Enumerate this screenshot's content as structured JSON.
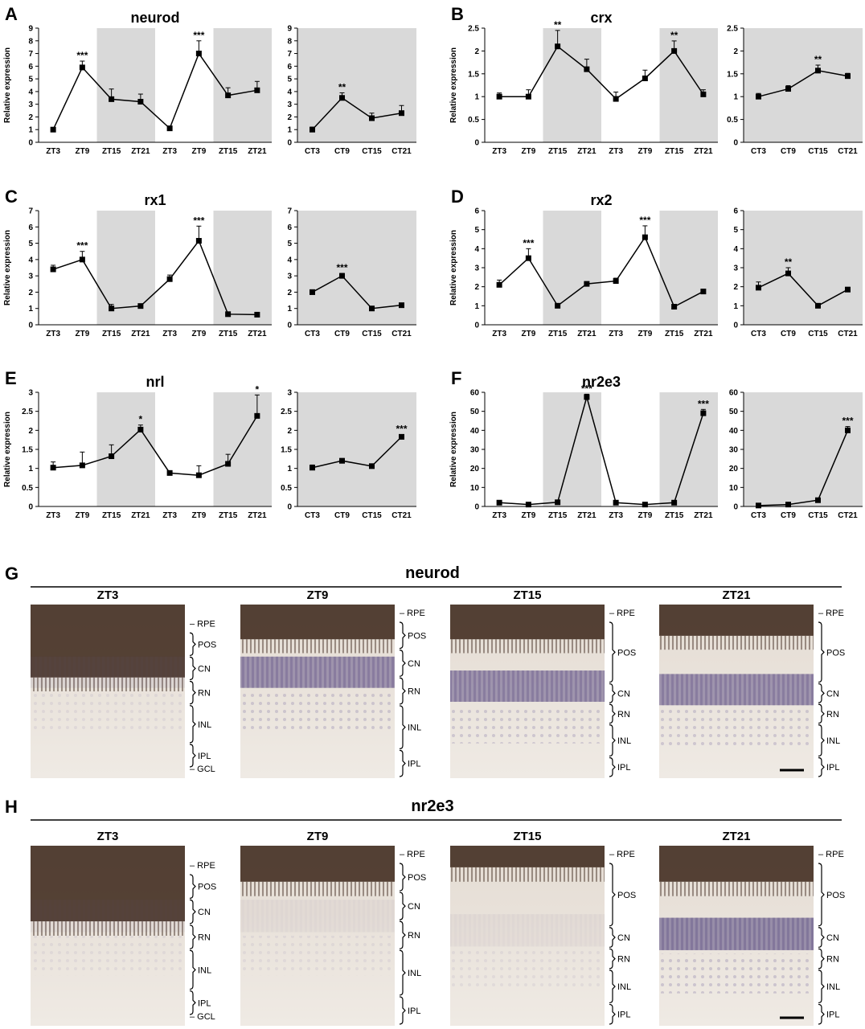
{
  "panels": [
    {
      "letter": "A",
      "title": "neurod",
      "ylabel": "Relative expression",
      "ymax": 9,
      "ystep": 1,
      "decimals": 0,
      "lx": [
        "ZT3",
        "ZT9",
        "ZT15",
        "ZT21",
        "ZT3",
        "ZT9",
        "ZT15",
        "ZT21"
      ],
      "lv": [
        1.0,
        5.9,
        3.4,
        3.2,
        1.1,
        7.0,
        3.7,
        4.1
      ],
      "le": [
        0.1,
        0.5,
        0.8,
        0.6,
        0.1,
        1.0,
        0.6,
        0.7
      ],
      "ls": [
        "",
        "***",
        "",
        "",
        "",
        "***",
        "",
        ""
      ],
      "rx": [
        "CT3",
        "CT9",
        "CT15",
        "CT21"
      ],
      "rv": [
        1.0,
        3.5,
        1.9,
        2.3
      ],
      "re": [
        0.2,
        0.4,
        0.4,
        0.6
      ],
      "rs": [
        "",
        "**",
        "",
        ""
      ]
    },
    {
      "letter": "B",
      "title": "crx",
      "ylabel": "Relative expression",
      "ymax": 2.5,
      "ystep": 0.5,
      "decimals": 1,
      "lx": [
        "ZT3",
        "ZT9",
        "ZT15",
        "ZT21",
        "ZT3",
        "ZT9",
        "ZT15",
        "ZT21"
      ],
      "lv": [
        1.0,
        1.0,
        2.1,
        1.6,
        0.95,
        1.4,
        2.0,
        1.05
      ],
      "le": [
        0.08,
        0.15,
        0.35,
        0.22,
        0.15,
        0.18,
        0.22,
        0.1
      ],
      "ls": [
        "",
        "",
        "**",
        "",
        "",
        "",
        "**",
        ""
      ],
      "rx": [
        "CT3",
        "CT9",
        "CT15",
        "CT21"
      ],
      "rv": [
        1.0,
        1.17,
        1.57,
        1.45
      ],
      "re": [
        0.07,
        0.07,
        0.12,
        0.06
      ],
      "rs": [
        "",
        "",
        "**",
        ""
      ]
    },
    {
      "letter": "C",
      "title": "rx1",
      "ylabel": "Relative expression",
      "ymax": 7,
      "ystep": 1,
      "decimals": 0,
      "lx": [
        "ZT3",
        "ZT9",
        "ZT15",
        "ZT21",
        "ZT3",
        "ZT9",
        "ZT15",
        "ZT21"
      ],
      "lv": [
        3.4,
        4.0,
        1.0,
        1.15,
        2.8,
        5.15,
        0.65,
        0.62
      ],
      "le": [
        0.25,
        0.5,
        0.25,
        0.1,
        0.25,
        0.9,
        0.05,
        0.05
      ],
      "ls": [
        "",
        "***",
        "",
        "",
        "",
        "***",
        "",
        ""
      ],
      "rx": [
        "CT3",
        "CT9",
        "CT15",
        "CT21"
      ],
      "rv": [
        2.0,
        3.0,
        1.0,
        1.2
      ],
      "re": [
        0.15,
        0.15,
        0.05,
        0.07
      ],
      "rs": [
        "",
        "***",
        "",
        ""
      ]
    },
    {
      "letter": "D",
      "title": "rx2",
      "ylabel": "Relative expression",
      "ymax": 6,
      "ystep": 1,
      "decimals": 0,
      "lx": [
        "ZT3",
        "ZT9",
        "ZT15",
        "ZT21",
        "ZT3",
        "ZT9",
        "ZT15",
        "ZT21"
      ],
      "lv": [
        2.1,
        3.5,
        1.0,
        2.15,
        2.3,
        4.6,
        0.95,
        1.75
      ],
      "le": [
        0.25,
        0.5,
        0.1,
        0.07,
        0.15,
        0.6,
        0.08,
        0.08
      ],
      "ls": [
        "",
        "***",
        "",
        "",
        "",
        "***",
        "",
        ""
      ],
      "rx": [
        "CT3",
        "CT9",
        "CT15",
        "CT21"
      ],
      "rv": [
        1.95,
        2.7,
        1.0,
        1.85
      ],
      "re": [
        0.3,
        0.3,
        0.1,
        0.12
      ],
      "rs": [
        "",
        "**",
        "",
        ""
      ]
    },
    {
      "letter": "E",
      "title": "nrl",
      "ylabel": "Relative expression",
      "ymax": 3,
      "ystep": 0.5,
      "decimals": 1,
      "lx": [
        "ZT3",
        "ZT9",
        "ZT15",
        "ZT21",
        "ZT3",
        "ZT9",
        "ZT15",
        "ZT21"
      ],
      "lv": [
        1.02,
        1.08,
        1.32,
        2.02,
        0.88,
        0.82,
        1.12,
        2.38
      ],
      "le": [
        0.15,
        0.35,
        0.3,
        0.12,
        0.03,
        0.25,
        0.25,
        0.55
      ],
      "ls": [
        "",
        "",
        "",
        "*",
        "",
        "",
        "",
        "*"
      ],
      "rx": [
        "CT3",
        "CT9",
        "CT15",
        "CT21"
      ],
      "rv": [
        1.02,
        1.2,
        1.06,
        1.83
      ],
      "re": [
        0.07,
        0.06,
        0.03,
        0.06
      ],
      "rs": [
        "",
        "",
        "",
        "***"
      ]
    },
    {
      "letter": "F",
      "title": "nr2e3",
      "ylabel": "Relative expression",
      "ymax": 60,
      "ystep": 10,
      "decimals": 0,
      "lx": [
        "ZT3",
        "ZT9",
        "ZT15",
        "ZT21",
        "ZT3",
        "ZT9",
        "ZT15",
        "ZT21"
      ],
      "lv": [
        2,
        1,
        2.2,
        57.5,
        2,
        1,
        2,
        49
      ],
      "le": [
        0.5,
        0.3,
        0.5,
        1.5,
        0.3,
        0.3,
        0.5,
        2
      ],
      "ls": [
        "",
        "",
        "",
        "***",
        "",
        "",
        "",
        "***"
      ],
      "rx": [
        "CT3",
        "CT9",
        "CT15",
        "CT21"
      ],
      "rv": [
        0.5,
        1,
        3.3,
        40
      ],
      "re": [
        0.3,
        0.3,
        0.8,
        2
      ],
      "rs": [
        "",
        "",
        "",
        "***"
      ]
    }
  ],
  "micrographs": [
    {
      "letter": "G",
      "gene": "neurod",
      "frames": [
        {
          "label": "ZT3",
          "layers": [
            {
              "name": "– RPE",
              "bracket": false
            },
            {
              "name": "POS",
              "bracket": true
            },
            {
              "name": "CN",
              "bracket": true
            },
            {
              "name": "RN",
              "bracket": true
            },
            {
              "name": "INL",
              "bracket": true
            },
            {
              "name": "IPL",
              "bracket": true
            },
            {
              "name": "– GCL",
              "bracket": false
            }
          ]
        },
        {
          "label": "ZT9",
          "layers": [
            {
              "name": "– RPE",
              "bracket": false
            },
            {
              "name": "POS",
              "bracket": true
            },
            {
              "name": "CN",
              "bracket": true
            },
            {
              "name": "RN",
              "bracket": true
            },
            {
              "name": "INL",
              "bracket": true
            },
            {
              "name": "IPL",
              "bracket": true
            }
          ]
        },
        {
          "label": "ZT15",
          "layers": [
            {
              "name": "– RPE",
              "bracket": false
            },
            {
              "name": "POS",
              "bracket": true
            },
            {
              "name": "CN",
              "bracket": true
            },
            {
              "name": "RN",
              "bracket": true
            },
            {
              "name": "INL",
              "bracket": true
            },
            {
              "name": "IPL",
              "bracket": true
            }
          ]
        },
        {
          "label": "ZT21",
          "layers": [
            {
              "name": "– RPE",
              "bracket": false
            },
            {
              "name": "POS",
              "bracket": true
            },
            {
              "name": "CN",
              "bracket": true
            },
            {
              "name": "RN",
              "bracket": true
            },
            {
              "name": "INL",
              "bracket": true
            },
            {
              "name": "IPL",
              "bracket": true
            }
          ]
        }
      ]
    },
    {
      "letter": "H",
      "gene": "nr2e3",
      "frames": [
        {
          "label": "ZT3",
          "layers": [
            {
              "name": "– RPE",
              "bracket": false
            },
            {
              "name": "POS",
              "bracket": true
            },
            {
              "name": "CN",
              "bracket": true
            },
            {
              "name": "RN",
              "bracket": true
            },
            {
              "name": "INL",
              "bracket": true
            },
            {
              "name": "IPL",
              "bracket": true
            },
            {
              "name": "– GCL",
              "bracket": false
            }
          ]
        },
        {
          "label": "ZT9",
          "layers": [
            {
              "name": "– RPE",
              "bracket": false
            },
            {
              "name": "POS",
              "bracket": true
            },
            {
              "name": "CN",
              "bracket": true
            },
            {
              "name": "RN",
              "bracket": true
            },
            {
              "name": "INL",
              "bracket": true
            },
            {
              "name": "IPL",
              "bracket": true
            }
          ]
        },
        {
          "label": "ZT15",
          "layers": [
            {
              "name": "– RPE",
              "bracket": false
            },
            {
              "name": "POS",
              "bracket": true
            },
            {
              "name": "CN",
              "bracket": true
            },
            {
              "name": "RN",
              "bracket": true
            },
            {
              "name": "INL",
              "bracket": true
            },
            {
              "name": "IPL",
              "bracket": true
            }
          ]
        },
        {
          "label": "ZT21",
          "layers": [
            {
              "name": "– RPE",
              "bracket": false
            },
            {
              "name": "POS",
              "bracket": true
            },
            {
              "name": "CN",
              "bracket": true
            },
            {
              "name": "RN",
              "bracket": true
            },
            {
              "name": "INL",
              "bracket": true
            },
            {
              "name": "IPL",
              "bracket": true
            }
          ]
        }
      ]
    }
  ],
  "colors": {
    "shade": "#d9d9d9",
    "line": "#000000",
    "stain_dark": "#2b1a10",
    "stain_purple": "#6c5f8e",
    "tissue": "#e8e1d9"
  },
  "chart_data": [
    {
      "type": "line",
      "title": "neurod",
      "ylabel": "Relative expression",
      "ylim": [
        0,
        9
      ],
      "panels": [
        {
          "x": [
            "ZT3",
            "ZT9",
            "ZT15",
            "ZT21",
            "ZT3",
            "ZT9",
            "ZT15",
            "ZT21"
          ],
          "values": [
            1.0,
            5.9,
            3.4,
            3.2,
            1.1,
            7.0,
            3.7,
            4.1
          ]
        },
        {
          "x": [
            "CT3",
            "CT9",
            "CT15",
            "CT21"
          ],
          "values": [
            1.0,
            3.5,
            1.9,
            2.3
          ]
        }
      ]
    },
    {
      "type": "line",
      "title": "crx",
      "ylabel": "Relative expression",
      "ylim": [
        0,
        2.5
      ],
      "panels": [
        {
          "x": [
            "ZT3",
            "ZT9",
            "ZT15",
            "ZT21",
            "ZT3",
            "ZT9",
            "ZT15",
            "ZT21"
          ],
          "values": [
            1.0,
            1.0,
            2.1,
            1.6,
            0.95,
            1.4,
            2.0,
            1.05
          ]
        },
        {
          "x": [
            "CT3",
            "CT9",
            "CT15",
            "CT21"
          ],
          "values": [
            1.0,
            1.17,
            1.57,
            1.45
          ]
        }
      ]
    },
    {
      "type": "line",
      "title": "rx1",
      "ylabel": "Relative expression",
      "ylim": [
        0,
        7
      ],
      "panels": [
        {
          "x": [
            "ZT3",
            "ZT9",
            "ZT15",
            "ZT21",
            "ZT3",
            "ZT9",
            "ZT15",
            "ZT21"
          ],
          "values": [
            3.4,
            4.0,
            1.0,
            1.15,
            2.8,
            5.15,
            0.65,
            0.62
          ]
        },
        {
          "x": [
            "CT3",
            "CT9",
            "CT15",
            "CT21"
          ],
          "values": [
            2.0,
            3.0,
            1.0,
            1.2
          ]
        }
      ]
    },
    {
      "type": "line",
      "title": "rx2",
      "ylabel": "Relative expression",
      "ylim": [
        0,
        6
      ],
      "panels": [
        {
          "x": [
            "ZT3",
            "ZT9",
            "ZT15",
            "ZT21",
            "ZT3",
            "ZT9",
            "ZT15",
            "ZT21"
          ],
          "values": [
            2.1,
            3.5,
            1.0,
            2.15,
            2.3,
            4.6,
            0.95,
            1.75
          ]
        },
        {
          "x": [
            "CT3",
            "CT9",
            "CT15",
            "CT21"
          ],
          "values": [
            1.95,
            2.7,
            1.0,
            1.85
          ]
        }
      ]
    },
    {
      "type": "line",
      "title": "nrl",
      "ylabel": "Relative expression",
      "ylim": [
        0,
        3
      ],
      "panels": [
        {
          "x": [
            "ZT3",
            "ZT9",
            "ZT15",
            "ZT21",
            "ZT3",
            "ZT9",
            "ZT15",
            "ZT21"
          ],
          "values": [
            1.02,
            1.08,
            1.32,
            2.02,
            0.88,
            0.82,
            1.12,
            2.38
          ]
        },
        {
          "x": [
            "CT3",
            "CT9",
            "CT15",
            "CT21"
          ],
          "values": [
            1.02,
            1.2,
            1.06,
            1.83
          ]
        }
      ]
    },
    {
      "type": "line",
      "title": "nr2e3",
      "ylabel": "Relative expression",
      "ylim": [
        0,
        60
      ],
      "panels": [
        {
          "x": [
            "ZT3",
            "ZT9",
            "ZT15",
            "ZT21",
            "ZT3",
            "ZT9",
            "ZT15",
            "ZT21"
          ],
          "values": [
            2,
            1,
            2.2,
            57.5,
            2,
            1,
            2,
            49
          ]
        },
        {
          "x": [
            "CT3",
            "CT9",
            "CT15",
            "CT21"
          ],
          "values": [
            0.5,
            1,
            3.3,
            40
          ]
        }
      ]
    }
  ]
}
